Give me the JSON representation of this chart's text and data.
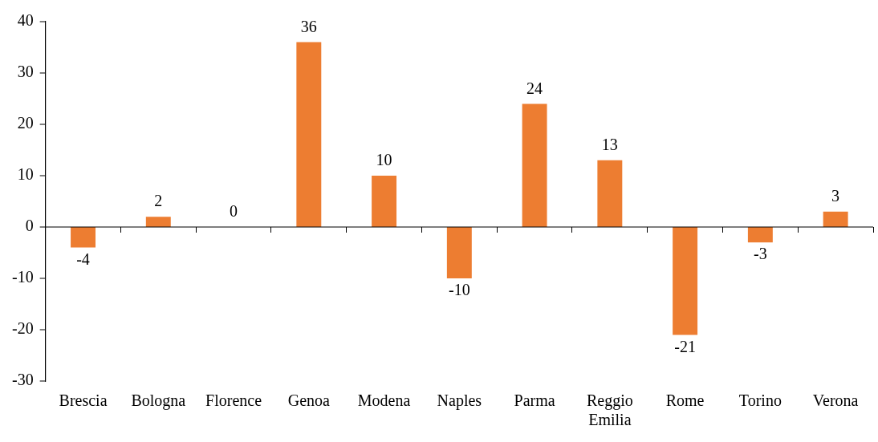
{
  "chart_data": {
    "type": "bar",
    "categories": [
      "Brescia",
      "Bologna",
      "Florence",
      "Genoa",
      "Modena",
      "Naples",
      "Parma",
      "Reggio Emilia",
      "Rome",
      "Torino",
      "Verona"
    ],
    "values": [
      -4,
      2,
      0,
      36,
      10,
      -10,
      24,
      13,
      -21,
      -3,
      3
    ],
    "color": "#ed7d31",
    "ylim": [
      -30,
      40
    ],
    "yticks": [
      -30,
      -20,
      -10,
      0,
      10,
      20,
      30,
      40
    ],
    "grid": false,
    "legend": false,
    "data_labels": true,
    "ref_lines": [
      {
        "axis": "y",
        "value": 0,
        "color": "#000000",
        "line_style": "solid"
      }
    ]
  }
}
